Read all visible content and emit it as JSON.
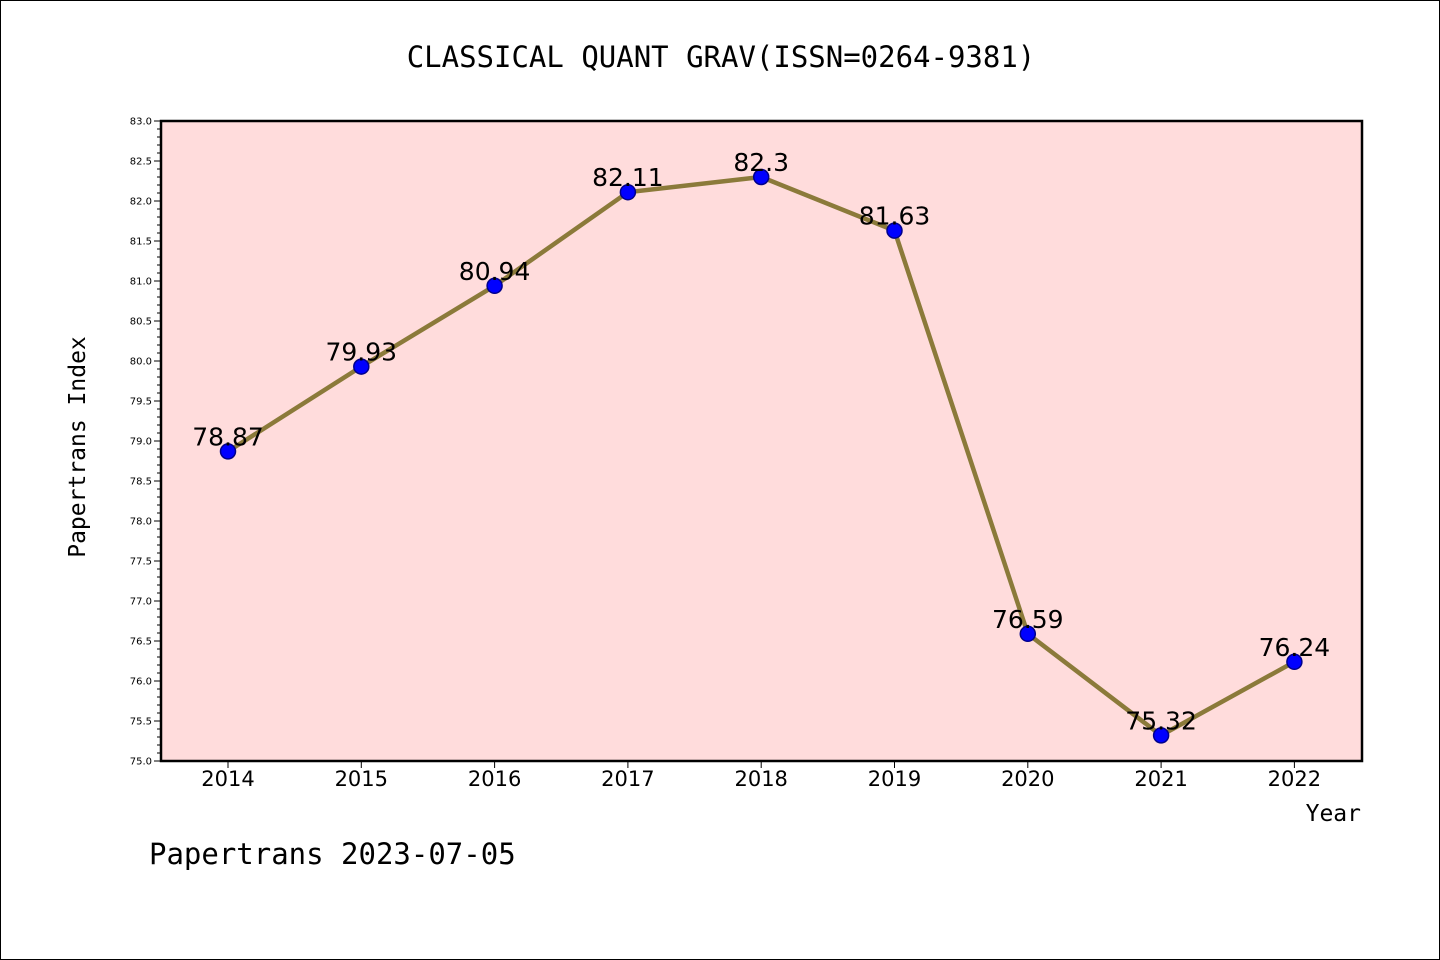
{
  "chart_data": {
    "type": "line",
    "title": "CLASSICAL QUANT GRAV(ISSN=0264-9381)",
    "xlabel": "Year",
    "ylabel": "Papertrans Index",
    "categories": [
      "2014",
      "2015",
      "2016",
      "2017",
      "2018",
      "2019",
      "2020",
      "2021",
      "2022"
    ],
    "series": [
      {
        "values": [
          78.87,
          79.93,
          80.94,
          82.11,
          82.3,
          81.63,
          76.59,
          75.32,
          76.24
        ],
        "data_labels": [
          "78.87",
          "79.93",
          "80.94",
          "82.11",
          "82.3",
          "81.63",
          "76.59",
          "75.32",
          "76.24"
        ]
      }
    ],
    "ylim": [
      75.0,
      83.0
    ],
    "yticks": [
      "75.0",
      "75.5",
      "76.0",
      "76.5",
      "77.0",
      "77.5",
      "78.0",
      "78.5",
      "79.0",
      "79.5",
      "80.0",
      "80.5",
      "81.0",
      "81.5",
      "82.0",
      "82.5",
      "83.0"
    ],
    "grid": false,
    "legend": "none",
    "colors": {
      "plot_background": "#ffdcdc",
      "line": "#8b7a3a",
      "marker": "#0000ff",
      "marker_edge": "#00008b"
    }
  },
  "footer": {
    "text": "Papertrans 2023-07-05"
  }
}
